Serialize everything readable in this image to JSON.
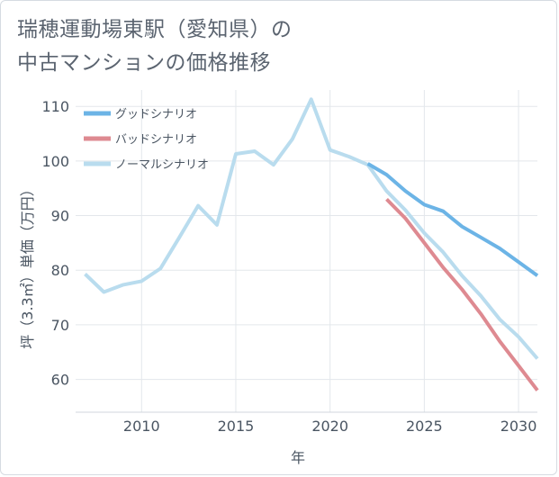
{
  "title": {
    "line1": "瑞穂運動場東駅（愛知県）の",
    "line2": "中古マンションの価格推移"
  },
  "chart_data": {
    "type": "line",
    "title": "瑞穂運動場東駅（愛知県）の中古マンションの価格推移",
    "xlabel": "年",
    "ylabel": "坪（3.3㎡）単価（万円）",
    "xlim": [
      2006.5,
      2031
    ],
    "ylim": [
      54,
      113
    ],
    "xticks": [
      2010,
      2015,
      2020,
      2025,
      2030
    ],
    "yticks": [
      60,
      70,
      80,
      90,
      100,
      110
    ],
    "xtick_labels": [
      "2010",
      "2015",
      "2020",
      "2025",
      "2030"
    ],
    "ytick_labels": [
      "60",
      "70",
      "80",
      "90",
      "100",
      "110"
    ],
    "grid": true,
    "legend_position": "top-left",
    "series": [
      {
        "name": "グッドシナリオ",
        "color": "#6cb4e6",
        "x": [
          2022,
          2023,
          2024,
          2025,
          2026,
          2027,
          2028,
          2029,
          2030,
          2031
        ],
        "values": [
          99.5,
          97.5,
          94.5,
          92.0,
          90.8,
          88.0,
          86.0,
          84.0,
          81.5,
          79.0
        ]
      },
      {
        "name": "バッドシナリオ",
        "color": "#de8a91",
        "x": [
          2023,
          2024,
          2025,
          2026,
          2027,
          2028,
          2029,
          2030,
          2031
        ],
        "values": [
          93.0,
          89.5,
          85.0,
          80.5,
          76.5,
          72.0,
          67.0,
          62.5,
          58.0
        ]
      },
      {
        "name": "ノーマルシナリオ",
        "color": "#b9dcee",
        "x": [
          2007,
          2008,
          2009,
          2010,
          2011,
          2012,
          2013,
          2014,
          2015,
          2016,
          2017,
          2018,
          2019,
          2020,
          2021,
          2022,
          2023,
          2024,
          2025,
          2026,
          2027,
          2028,
          2029,
          2030,
          2031
        ],
        "values": [
          79.3,
          76.0,
          77.3,
          78.0,
          80.3,
          86.0,
          91.8,
          88.3,
          101.3,
          101.8,
          99.3,
          104.0,
          111.3,
          102.0,
          100.8,
          99.3,
          94.5,
          91.0,
          86.8,
          83.3,
          79.0,
          75.3,
          71.0,
          67.8,
          63.8
        ]
      }
    ]
  }
}
